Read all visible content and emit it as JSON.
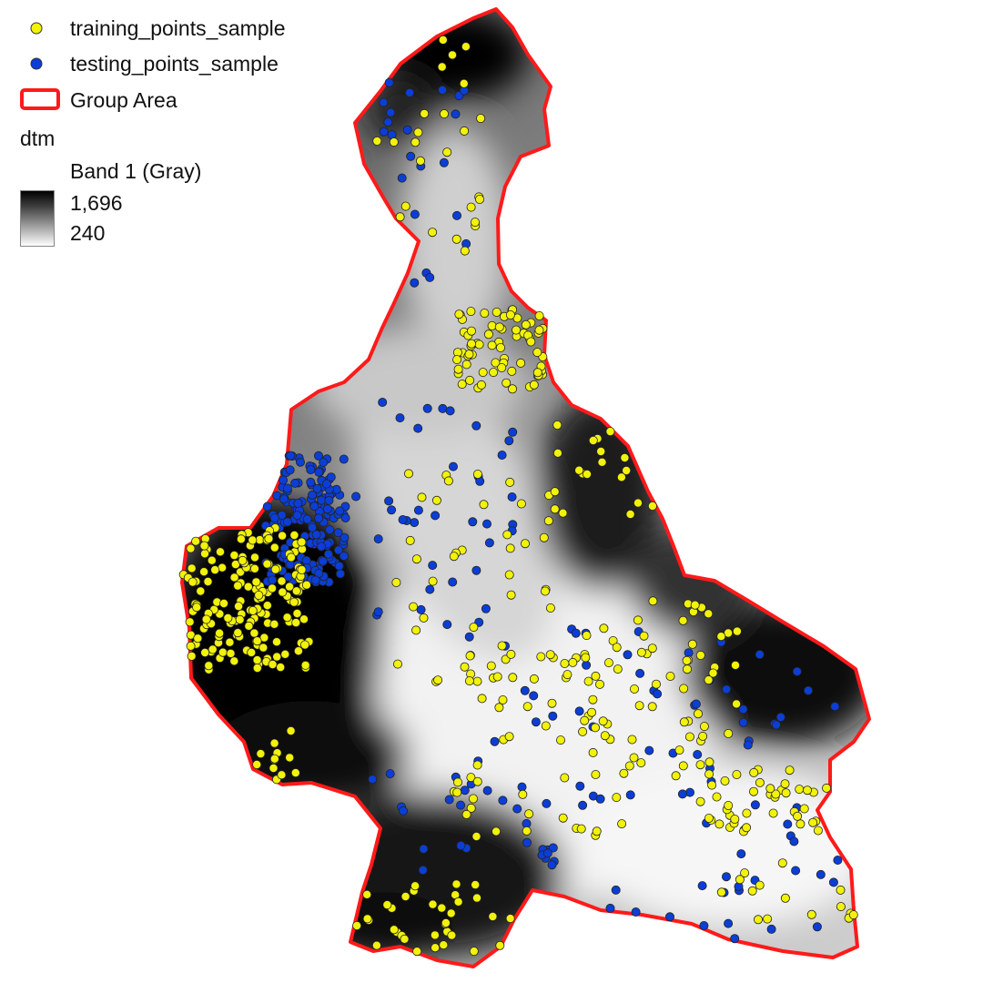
{
  "legend": {
    "training": {
      "label": "training_points_sample",
      "color": "#f2f20a",
      "icon": "yellow-circle-marker"
    },
    "testing": {
      "label": "testing_points_sample",
      "color": "#0b3ed6",
      "icon": "blue-circle-marker"
    },
    "group": {
      "label": "Group Area",
      "color": "#ff1a1a",
      "icon": "red-outline-rectangle"
    },
    "dtm": {
      "layer": "dtm",
      "band": "Band 1 (Gray)",
      "max": "1,696",
      "min": "240"
    }
  }
}
